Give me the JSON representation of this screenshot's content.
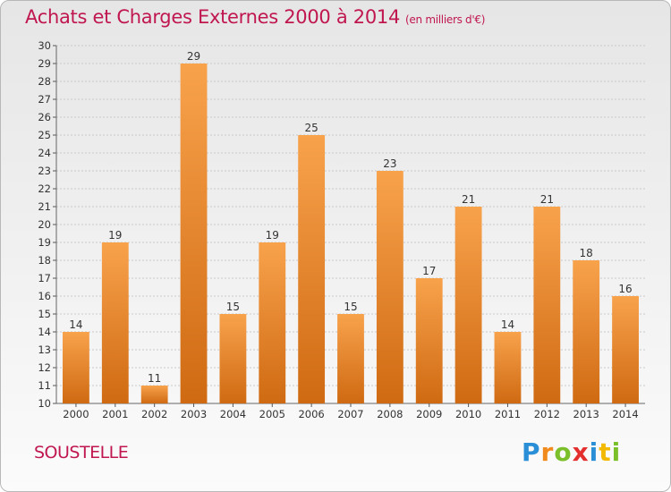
{
  "title": "Achats et Charges Externes 2000 à 2014",
  "subtitle": "(en milliers d'€)",
  "commune": "SOUSTELLE",
  "logo": {
    "letters": [
      "P",
      "r",
      "o",
      "x",
      "i",
      "t",
      "i"
    ],
    "colors": [
      "#2a8fd6",
      "#f08a1c",
      "#7bbf2a",
      "#e42f2f",
      "#2a8fd6",
      "#f2b900",
      "#7bbf2a"
    ]
  },
  "colors": {
    "bar_light": "#f8a24c",
    "bar_dark": "#cf6a12",
    "title": "#c0174f",
    "grid": "#c9c9c9"
  },
  "chart_data": {
    "type": "bar",
    "categories": [
      "2000",
      "2001",
      "2002",
      "2003",
      "2004",
      "2005",
      "2006",
      "2007",
      "2008",
      "2009",
      "2010",
      "2011",
      "2012",
      "2013",
      "2014"
    ],
    "values": [
      14,
      19,
      11,
      29,
      15,
      19,
      25,
      15,
      23,
      17,
      21,
      14,
      21,
      18,
      16
    ],
    "ylim": [
      10,
      30
    ],
    "yticks": [
      10,
      11,
      12,
      13,
      14,
      15,
      16,
      17,
      18,
      19,
      20,
      21,
      22,
      23,
      24,
      25,
      26,
      27,
      28,
      29,
      30
    ],
    "grid": true,
    "data_labels": true
  }
}
